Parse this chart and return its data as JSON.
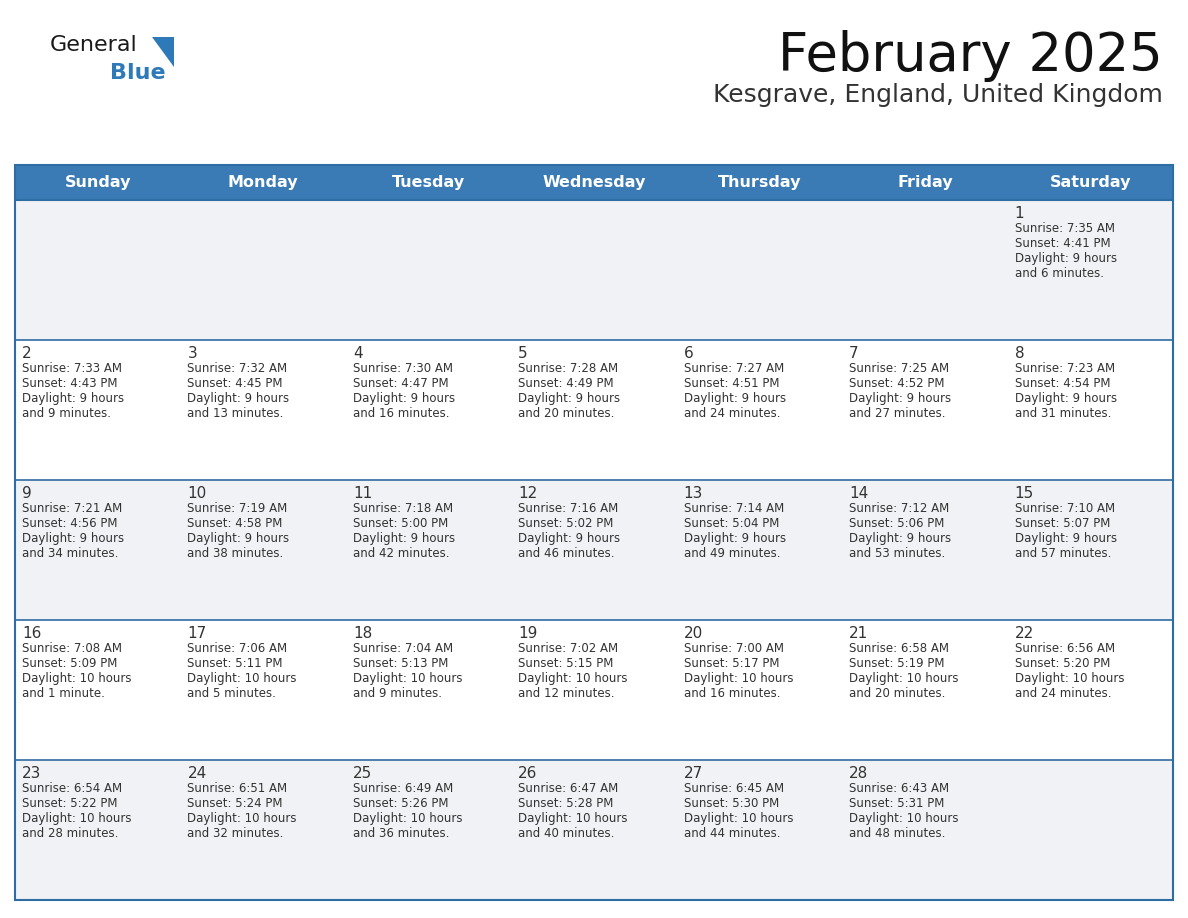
{
  "title": "February 2025",
  "subtitle": "Kesgrave, England, United Kingdom",
  "header_bg": "#3a7ab5",
  "header_text": "#ffffff",
  "day_names": [
    "Sunday",
    "Monday",
    "Tuesday",
    "Wednesday",
    "Thursday",
    "Friday",
    "Saturday"
  ],
  "cell_bg_white": "#ffffff",
  "cell_bg_gray": "#f0f2f5",
  "border_color": "#2e6da4",
  "text_color": "#333333",
  "number_color": "#333333",
  "logo_color": "#2e7ab8",
  "logo_text_general": "General",
  "logo_text_blue": "Blue",
  "days": [
    {
      "day": 1,
      "row": 0,
      "col": 6,
      "sunrise": "7:35 AM",
      "sunset": "4:41 PM",
      "daylight": "9 hours and 6 minutes."
    },
    {
      "day": 2,
      "row": 1,
      "col": 0,
      "sunrise": "7:33 AM",
      "sunset": "4:43 PM",
      "daylight": "9 hours and 9 minutes."
    },
    {
      "day": 3,
      "row": 1,
      "col": 1,
      "sunrise": "7:32 AM",
      "sunset": "4:45 PM",
      "daylight": "9 hours and 13 minutes."
    },
    {
      "day": 4,
      "row": 1,
      "col": 2,
      "sunrise": "7:30 AM",
      "sunset": "4:47 PM",
      "daylight": "9 hours and 16 minutes."
    },
    {
      "day": 5,
      "row": 1,
      "col": 3,
      "sunrise": "7:28 AM",
      "sunset": "4:49 PM",
      "daylight": "9 hours and 20 minutes."
    },
    {
      "day": 6,
      "row": 1,
      "col": 4,
      "sunrise": "7:27 AM",
      "sunset": "4:51 PM",
      "daylight": "9 hours and 24 minutes."
    },
    {
      "day": 7,
      "row": 1,
      "col": 5,
      "sunrise": "7:25 AM",
      "sunset": "4:52 PM",
      "daylight": "9 hours and 27 minutes."
    },
    {
      "day": 8,
      "row": 1,
      "col": 6,
      "sunrise": "7:23 AM",
      "sunset": "4:54 PM",
      "daylight": "9 hours and 31 minutes."
    },
    {
      "day": 9,
      "row": 2,
      "col": 0,
      "sunrise": "7:21 AM",
      "sunset": "4:56 PM",
      "daylight": "9 hours and 34 minutes."
    },
    {
      "day": 10,
      "row": 2,
      "col": 1,
      "sunrise": "7:19 AM",
      "sunset": "4:58 PM",
      "daylight": "9 hours and 38 minutes."
    },
    {
      "day": 11,
      "row": 2,
      "col": 2,
      "sunrise": "7:18 AM",
      "sunset": "5:00 PM",
      "daylight": "9 hours and 42 minutes."
    },
    {
      "day": 12,
      "row": 2,
      "col": 3,
      "sunrise": "7:16 AM",
      "sunset": "5:02 PM",
      "daylight": "9 hours and 46 minutes."
    },
    {
      "day": 13,
      "row": 2,
      "col": 4,
      "sunrise": "7:14 AM",
      "sunset": "5:04 PM",
      "daylight": "9 hours and 49 minutes."
    },
    {
      "day": 14,
      "row": 2,
      "col": 5,
      "sunrise": "7:12 AM",
      "sunset": "5:06 PM",
      "daylight": "9 hours and 53 minutes."
    },
    {
      "day": 15,
      "row": 2,
      "col": 6,
      "sunrise": "7:10 AM",
      "sunset": "5:07 PM",
      "daylight": "9 hours and 57 minutes."
    },
    {
      "day": 16,
      "row": 3,
      "col": 0,
      "sunrise": "7:08 AM",
      "sunset": "5:09 PM",
      "daylight": "10 hours and 1 minute."
    },
    {
      "day": 17,
      "row": 3,
      "col": 1,
      "sunrise": "7:06 AM",
      "sunset": "5:11 PM",
      "daylight": "10 hours and 5 minutes."
    },
    {
      "day": 18,
      "row": 3,
      "col": 2,
      "sunrise": "7:04 AM",
      "sunset": "5:13 PM",
      "daylight": "10 hours and 9 minutes."
    },
    {
      "day": 19,
      "row": 3,
      "col": 3,
      "sunrise": "7:02 AM",
      "sunset": "5:15 PM",
      "daylight": "10 hours and 12 minutes."
    },
    {
      "day": 20,
      "row": 3,
      "col": 4,
      "sunrise": "7:00 AM",
      "sunset": "5:17 PM",
      "daylight": "10 hours and 16 minutes."
    },
    {
      "day": 21,
      "row": 3,
      "col": 5,
      "sunrise": "6:58 AM",
      "sunset": "5:19 PM",
      "daylight": "10 hours and 20 minutes."
    },
    {
      "day": 22,
      "row": 3,
      "col": 6,
      "sunrise": "6:56 AM",
      "sunset": "5:20 PM",
      "daylight": "10 hours and 24 minutes."
    },
    {
      "day": 23,
      "row": 4,
      "col": 0,
      "sunrise": "6:54 AM",
      "sunset": "5:22 PM",
      "daylight": "10 hours and 28 minutes."
    },
    {
      "day": 24,
      "row": 4,
      "col": 1,
      "sunrise": "6:51 AM",
      "sunset": "5:24 PM",
      "daylight": "10 hours and 32 minutes."
    },
    {
      "day": 25,
      "row": 4,
      "col": 2,
      "sunrise": "6:49 AM",
      "sunset": "5:26 PM",
      "daylight": "10 hours and 36 minutes."
    },
    {
      "day": 26,
      "row": 4,
      "col": 3,
      "sunrise": "6:47 AM",
      "sunset": "5:28 PM",
      "daylight": "10 hours and 40 minutes."
    },
    {
      "day": 27,
      "row": 4,
      "col": 4,
      "sunrise": "6:45 AM",
      "sunset": "5:30 PM",
      "daylight": "10 hours and 44 minutes."
    },
    {
      "day": 28,
      "row": 4,
      "col": 5,
      "sunrise": "6:43 AM",
      "sunset": "5:31 PM",
      "daylight": "10 hours and 48 minutes."
    }
  ]
}
